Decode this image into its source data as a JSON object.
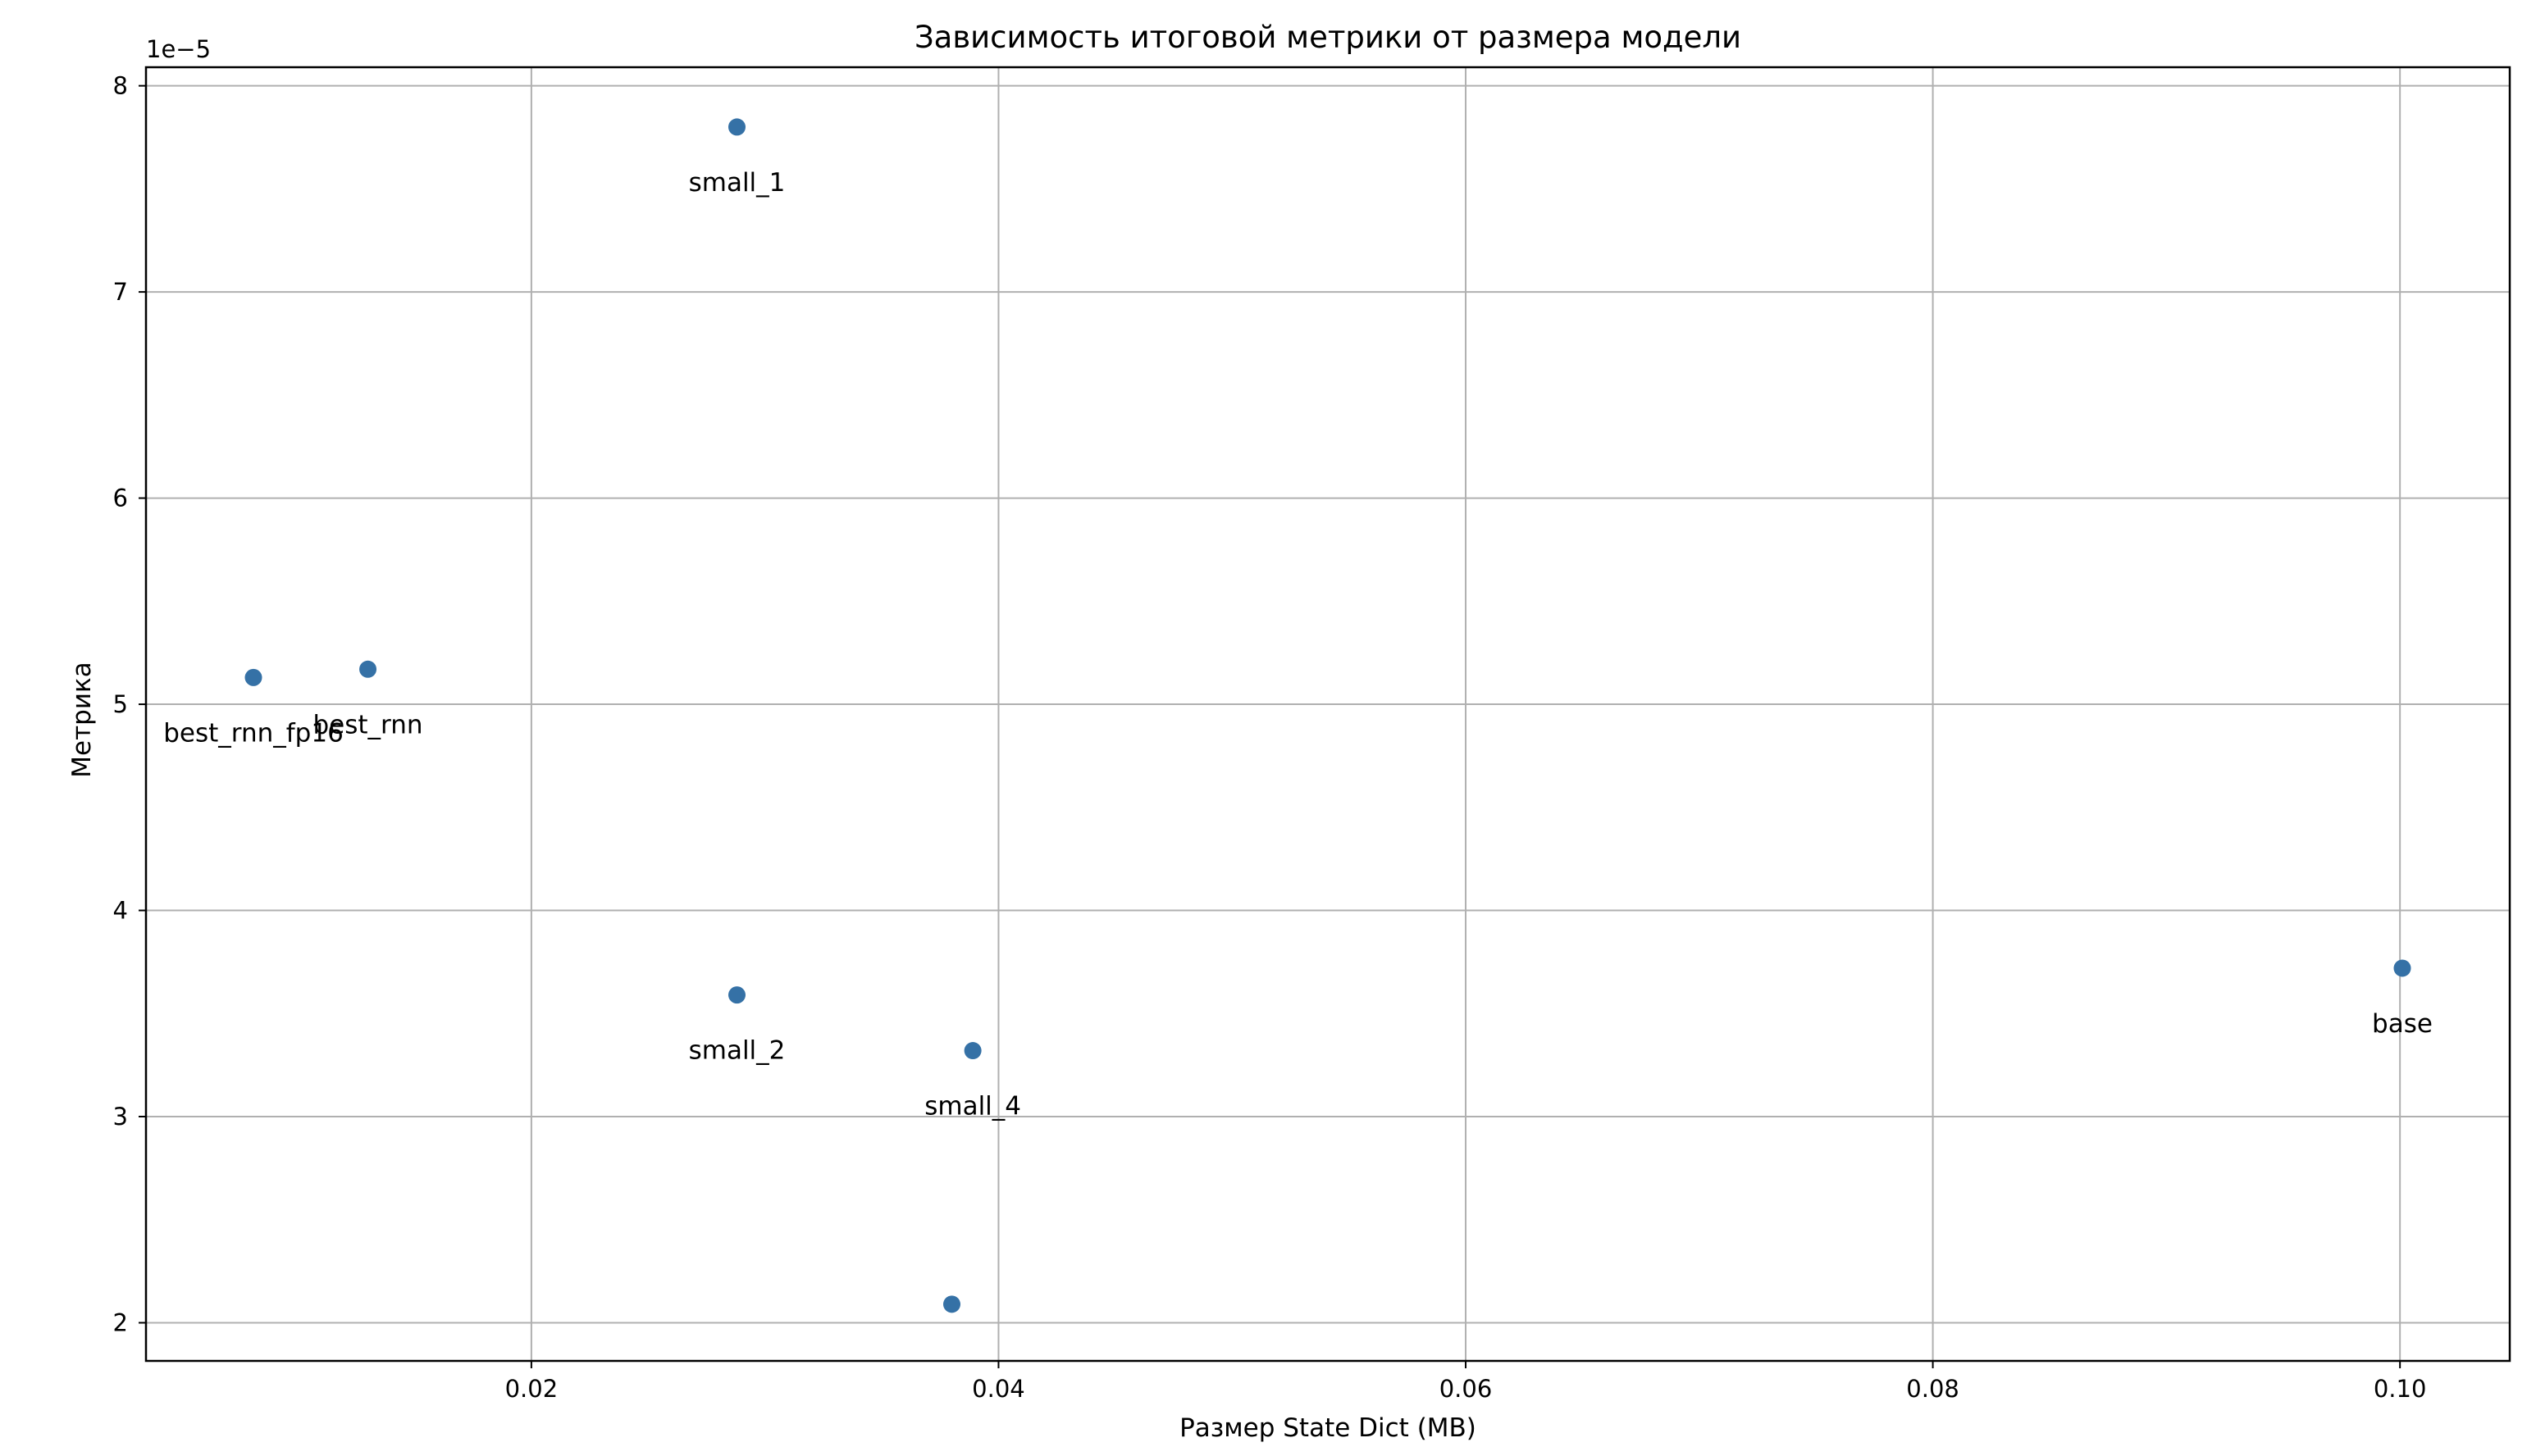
{
  "chart_data": {
    "type": "scatter",
    "title": "Зависимость итоговой метрики от размера модели",
    "xlabel": "Размер State Dict (MB)",
    "ylabel": "Метрика",
    "y_offset_text": "1e−5",
    "xlim": [
      0.0035,
      0.1047
    ],
    "ylim": [
      1.815,
      8.09
    ],
    "x_ticks": [
      0.02,
      0.04,
      0.06,
      0.08,
      0.1
    ],
    "x_tick_labels": [
      "0.02",
      "0.04",
      "0.06",
      "0.08",
      "0.10"
    ],
    "y_ticks": [
      2,
      3,
      4,
      5,
      6,
      7,
      8
    ],
    "y_tick_labels": [
      "2",
      "3",
      "4",
      "5",
      "6",
      "7",
      "8"
    ],
    "grid": true,
    "marker_color": "#3571a6",
    "points": [
      {
        "label": "small_1",
        "x": 0.0288,
        "y": 7.8
      },
      {
        "label": "best_rnn_fp16",
        "x": 0.0081,
        "y": 5.13
      },
      {
        "label": "best_rnn",
        "x": 0.013,
        "y": 5.17
      },
      {
        "label": "small_2",
        "x": 0.0288,
        "y": 3.59
      },
      {
        "label": "small_4",
        "x": 0.0389,
        "y": 3.32
      },
      {
        "label": "",
        "x": 0.038,
        "y": 2.09
      },
      {
        "label": "base",
        "x": 0.1001,
        "y": 3.72
      }
    ]
  }
}
